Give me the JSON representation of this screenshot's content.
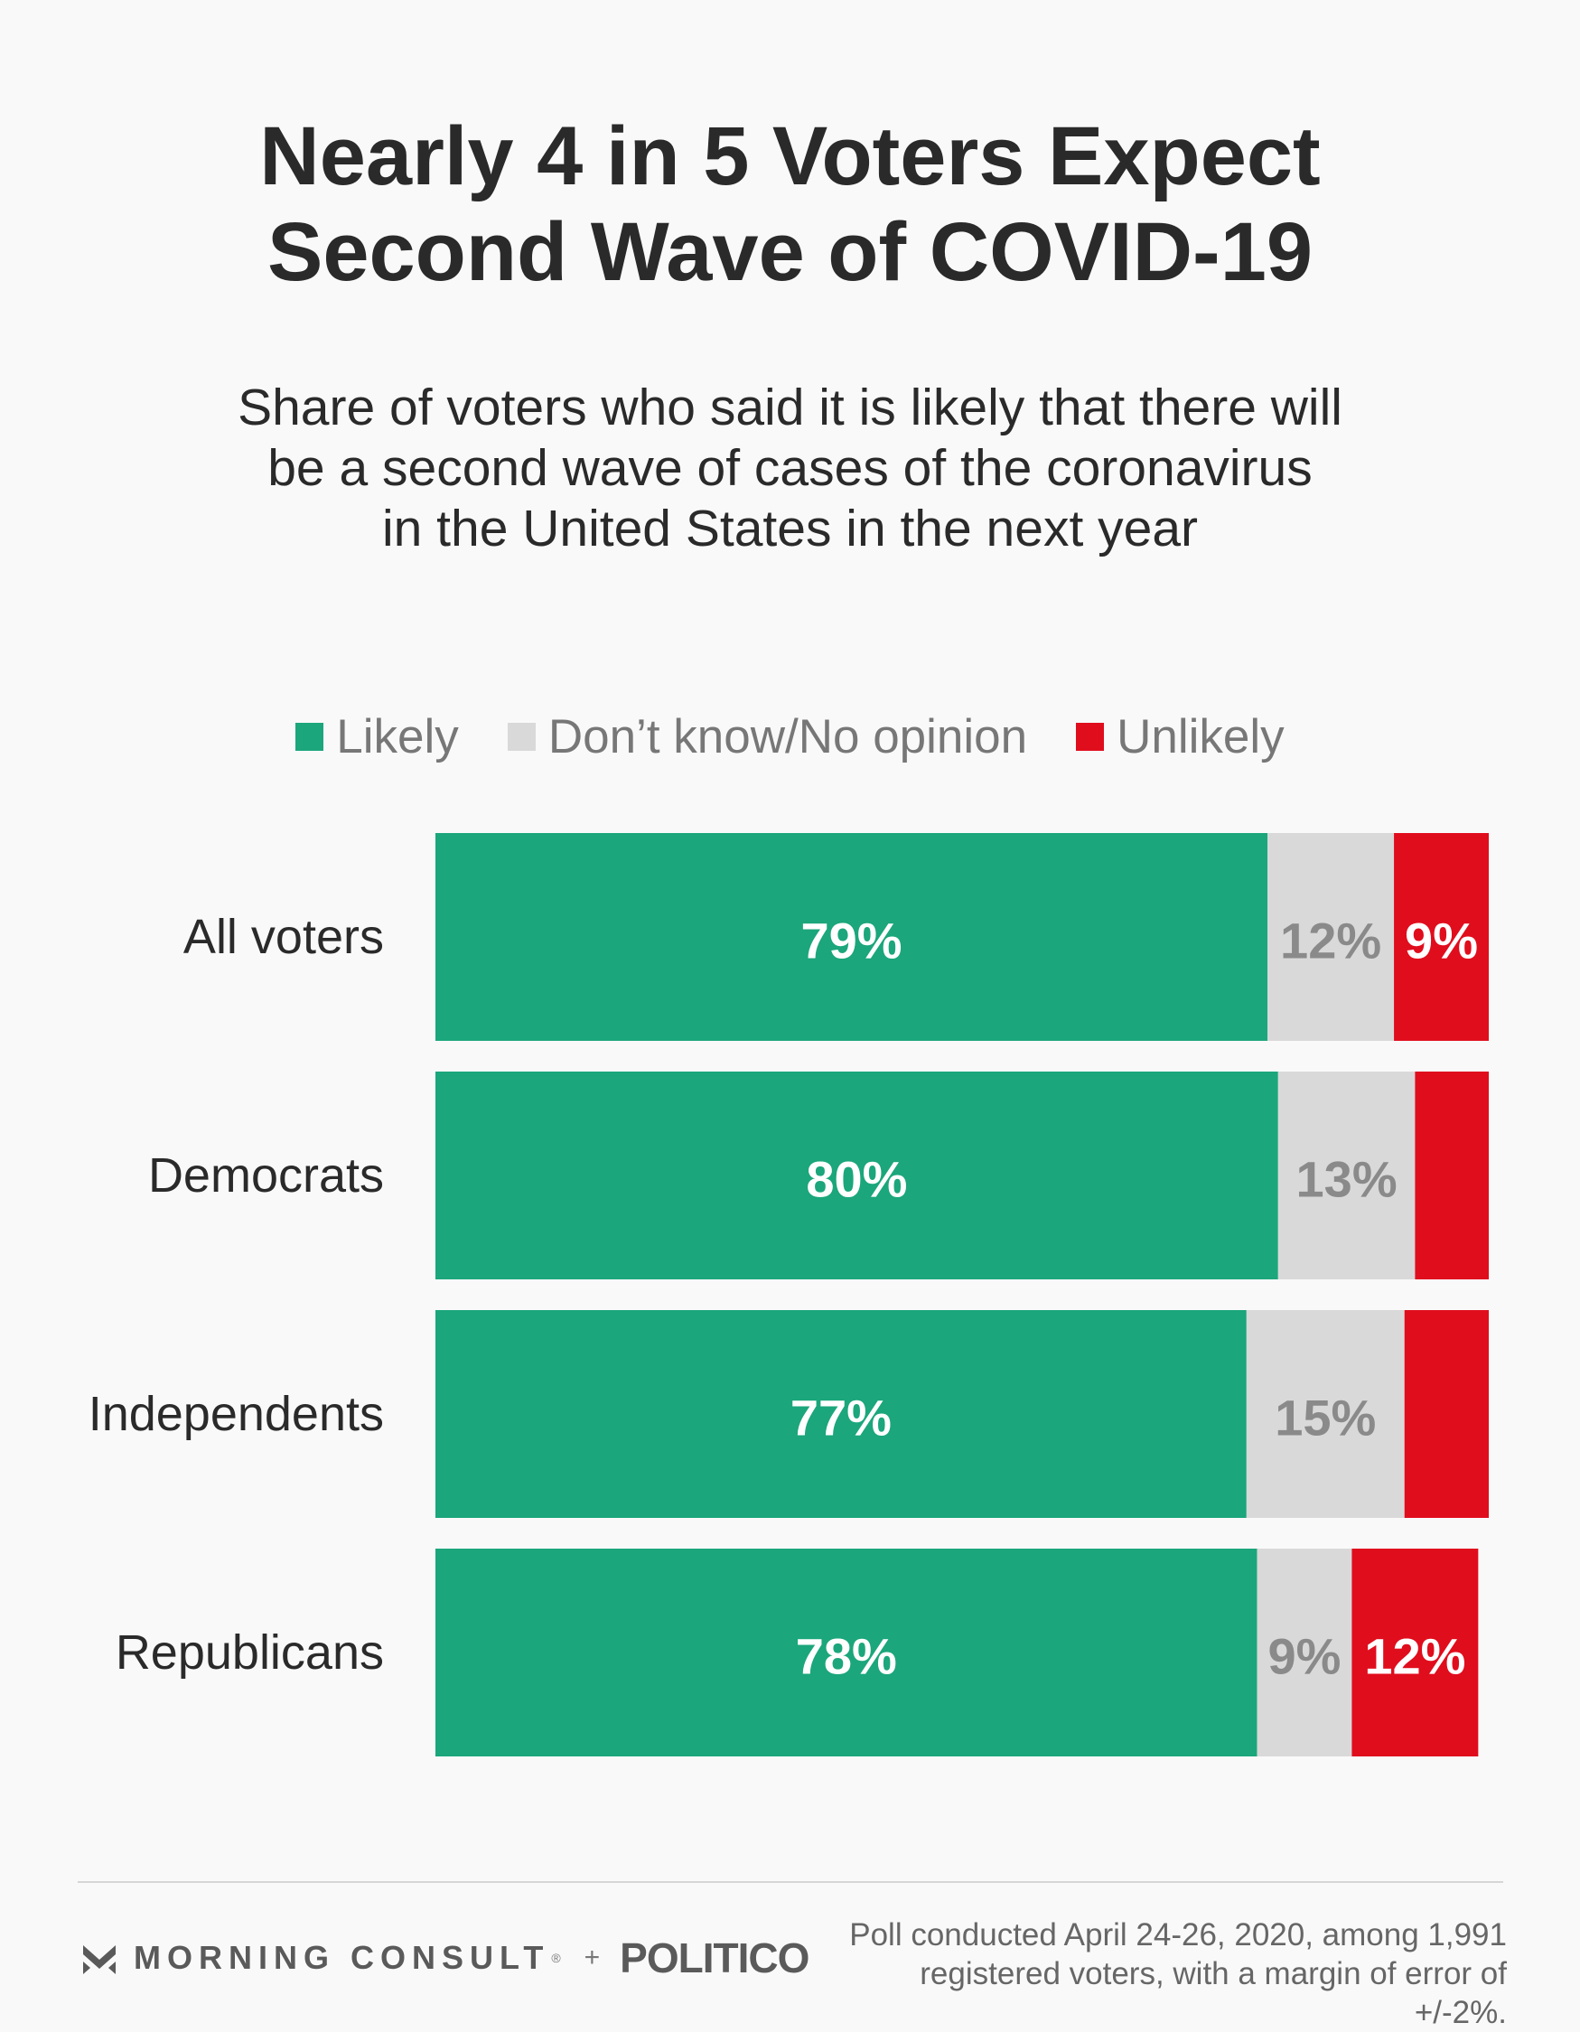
{
  "title_line1": "Nearly 4 in 5 Voters Expect",
  "title_line2": "Second Wave of COVID-19",
  "subtitle_line1": "Share of voters who said it is likely that there will",
  "subtitle_line2": "be a second wave of cases of the coronavirus",
  "subtitle_line3": "in the United States in the next year",
  "legend": [
    {
      "label": "Likely",
      "color": "#1ba67b"
    },
    {
      "label": "Don’t know/No opinion",
      "color": "#d9d9d9"
    },
    {
      "label": "Unlikely",
      "color": "#e00d1d"
    }
  ],
  "chart_data": {
    "type": "bar",
    "orientation": "horizontal",
    "stacked": true,
    "categories": [
      "All voters",
      "Democrats",
      "Independents",
      "Republicans"
    ],
    "series": [
      {
        "name": "Likely",
        "values": [
          79,
          80,
          77,
          78
        ],
        "labels": [
          "79%",
          "80%",
          "77%",
          "78%"
        ],
        "color": "#1ba67b",
        "label_color": "#ffffff"
      },
      {
        "name": "Don’t know/No opinion",
        "values": [
          12,
          13,
          15,
          9
        ],
        "labels": [
          "12%",
          "13%",
          "15%",
          "9%"
        ],
        "color": "#d9d9d9",
        "label_color": "#8a8a8a"
      },
      {
        "name": "Unlikely",
        "values": [
          9,
          7,
          8,
          12
        ],
        "labels": [
          "9%",
          "",
          "",
          "12%"
        ],
        "color": "#e00d1d",
        "label_color": "#ffffff"
      }
    ],
    "xlim": [
      0,
      100
    ],
    "legend_position": "top"
  },
  "footer": {
    "brand": "MORNING CONSULT",
    "trademark": "®",
    "plus": "+",
    "partner": "POLITICO",
    "source_line1": "Poll conducted April 24-26, 2020, among 1,991",
    "source_line2": "registered voters, with a margin of error of +/-2%."
  }
}
